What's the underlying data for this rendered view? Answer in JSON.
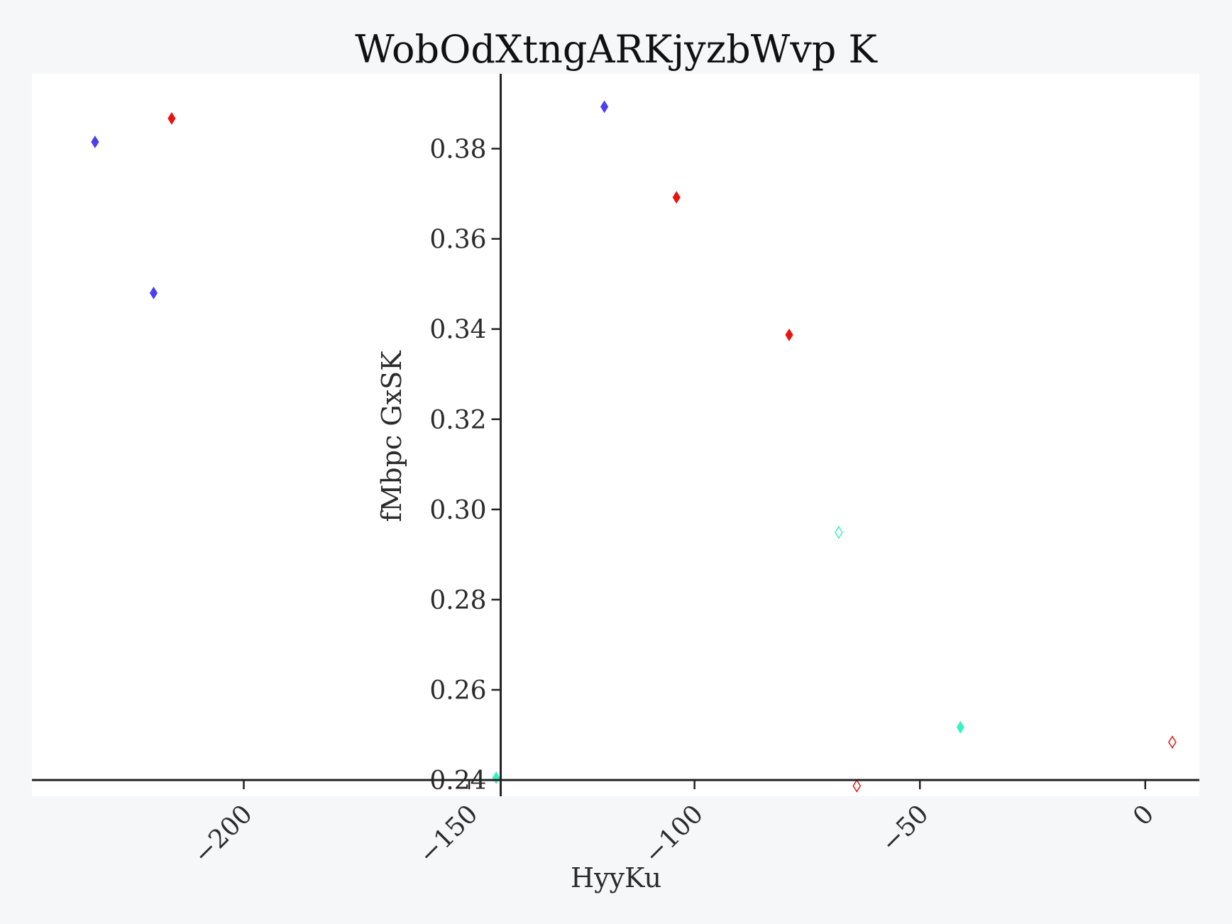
{
  "chart_data": {
    "type": "scatter",
    "title": "WobOdXtngARKjyzbWvp K",
    "xlabel": "HyyKu",
    "ylabel": "fMbpc GxSK",
    "xlim": [
      -247,
      12
    ],
    "ylim": [
      0.2364,
      0.3966
    ],
    "x_ticks": [
      -200,
      -150,
      -100,
      -50,
      0
    ],
    "x_tick_labels": [
      "−200",
      "−150",
      "−100",
      "−50",
      "0"
    ],
    "y_ticks": [
      0.24,
      0.26,
      0.28,
      0.3,
      0.32,
      0.34,
      0.36,
      0.38
    ],
    "y_tick_labels": [
      "0.24",
      "0.26",
      "0.28",
      "0.30",
      "0.32",
      "0.34",
      "0.36",
      "0.38"
    ],
    "spine_positions": {
      "x_axis_at_y": 0.24,
      "y_axis_at_x": -143
    },
    "grid": false,
    "legend": "none",
    "colors": {
      "blue": "#4b3ff2",
      "red": "#e8140f",
      "teal": "#3ef0c0"
    },
    "series": [
      {
        "color": "#4b3ff2",
        "marker": "diamond-filled",
        "points": [
          {
            "x": -233,
            "y": 0.3815
          },
          {
            "x": -220,
            "y": 0.348
          },
          {
            "x": -120,
            "y": 0.3893
          }
        ]
      },
      {
        "color": "#e8140f",
        "marker": "diamond-filled",
        "points": [
          {
            "x": -216,
            "y": 0.3867
          },
          {
            "x": -104,
            "y": 0.3692
          },
          {
            "x": -79,
            "y": 0.3387
          }
        ]
      },
      {
        "color": "#e8140f",
        "marker": "diamond-open",
        "points": [
          {
            "x": -64,
            "y": 0.2387
          },
          {
            "x": 6,
            "y": 0.2484
          }
        ]
      },
      {
        "color": "#3ef0c0",
        "marker": "diamond-filled",
        "points": [
          {
            "x": -144,
            "y": 0.2405
          },
          {
            "x": -41,
            "y": 0.2517
          }
        ]
      },
      {
        "color": "#3ef0c0",
        "marker": "diamond-open",
        "points": [
          {
            "x": -68,
            "y": 0.2949
          }
        ]
      }
    ]
  }
}
